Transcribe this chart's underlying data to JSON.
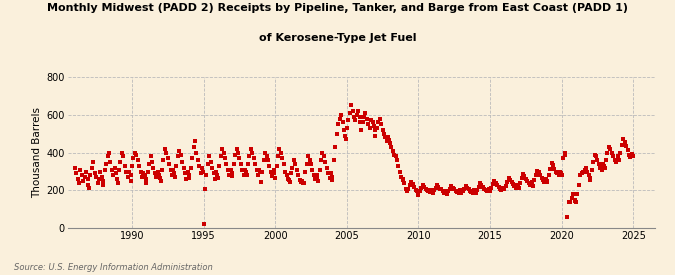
{
  "title_line1": "Monthly Midwest (PADD 2) Receipts by Pipeline, Tanker, and Barge from East Coast (PADD 1)",
  "title_line2": "of Kerosene-Type Jet Fuel",
  "ylabel": "Thousand Barrels",
  "source": "Source: U.S. Energy Information Administration",
  "background_color": "#faf0dc",
  "plot_bg_color": "#faf0dc",
  "marker_color": "#cc0000",
  "marker_size": 5,
  "ylim": [
    0,
    800
  ],
  "yticks": [
    0,
    200,
    400,
    600,
    800
  ],
  "grid_color": "#bbbbbb",
  "grid_style": "--",
  "xmin": 1985.5,
  "xmax": 2026.5,
  "xticks": [
    1990,
    1995,
    2000,
    2005,
    2010,
    2015,
    2020,
    2025
  ],
  "data": [
    [
      1986.0,
      320
    ],
    [
      1986.1,
      290
    ],
    [
      1986.2,
      260
    ],
    [
      1986.3,
      240
    ],
    [
      1986.4,
      310
    ],
    [
      1986.5,
      280
    ],
    [
      1986.6,
      250
    ],
    [
      1986.7,
      270
    ],
    [
      1986.8,
      300
    ],
    [
      1986.9,
      260
    ],
    [
      1986.95,
      230
    ],
    [
      1987.0,
      215
    ],
    [
      1987.1,
      280
    ],
    [
      1987.2,
      320
    ],
    [
      1987.3,
      350
    ],
    [
      1987.4,
      290
    ],
    [
      1987.5,
      270
    ],
    [
      1987.6,
      240
    ],
    [
      1987.7,
      260
    ],
    [
      1987.8,
      300
    ],
    [
      1987.9,
      270
    ],
    [
      1987.95,
      250
    ],
    [
      1988.0,
      230
    ],
    [
      1988.1,
      310
    ],
    [
      1988.2,
      340
    ],
    [
      1988.3,
      380
    ],
    [
      1988.4,
      400
    ],
    [
      1988.5,
      350
    ],
    [
      1988.6,
      310
    ],
    [
      1988.7,
      280
    ],
    [
      1988.8,
      320
    ],
    [
      1988.9,
      290
    ],
    [
      1988.95,
      260
    ],
    [
      1989.0,
      240
    ],
    [
      1989.1,
      310
    ],
    [
      1989.2,
      350
    ],
    [
      1989.3,
      400
    ],
    [
      1989.4,
      380
    ],
    [
      1989.5,
      330
    ],
    [
      1989.6,
      300
    ],
    [
      1989.7,
      270
    ],
    [
      1989.8,
      300
    ],
    [
      1989.9,
      280
    ],
    [
      1989.95,
      250
    ],
    [
      1990.0,
      330
    ],
    [
      1990.1,
      370
    ],
    [
      1990.2,
      400
    ],
    [
      1990.3,
      390
    ],
    [
      1990.4,
      360
    ],
    [
      1990.5,
      330
    ],
    [
      1990.6,
      300
    ],
    [
      1990.7,
      270
    ],
    [
      1990.8,
      290
    ],
    [
      1990.9,
      280
    ],
    [
      1990.95,
      260
    ],
    [
      1991.0,
      240
    ],
    [
      1991.1,
      300
    ],
    [
      1991.2,
      340
    ],
    [
      1991.3,
      380
    ],
    [
      1991.4,
      350
    ],
    [
      1991.5,
      320
    ],
    [
      1991.6,
      290
    ],
    [
      1991.7,
      270
    ],
    [
      1991.8,
      300
    ],
    [
      1991.9,
      280
    ],
    [
      1991.95,
      265
    ],
    [
      1992.0,
      250
    ],
    [
      1992.1,
      310
    ],
    [
      1992.2,
      360
    ],
    [
      1992.3,
      420
    ],
    [
      1992.4,
      400
    ],
    [
      1992.5,
      370
    ],
    [
      1992.6,
      340
    ],
    [
      1992.7,
      310
    ],
    [
      1992.8,
      280
    ],
    [
      1992.9,
      310
    ],
    [
      1992.95,
      290
    ],
    [
      1993.0,
      270
    ],
    [
      1993.1,
      330
    ],
    [
      1993.2,
      380
    ],
    [
      1993.3,
      410
    ],
    [
      1993.4,
      390
    ],
    [
      1993.5,
      350
    ],
    [
      1993.6,
      320
    ],
    [
      1993.7,
      290
    ],
    [
      1993.8,
      260
    ],
    [
      1993.9,
      300
    ],
    [
      1993.95,
      280
    ],
    [
      1994.0,
      265
    ],
    [
      1994.1,
      320
    ],
    [
      1994.2,
      370
    ],
    [
      1994.3,
      430
    ],
    [
      1994.4,
      460
    ],
    [
      1994.5,
      400
    ],
    [
      1994.6,
      360
    ],
    [
      1994.7,
      330
    ],
    [
      1994.8,
      290
    ],
    [
      1994.9,
      320
    ],
    [
      1994.95,
      295
    ],
    [
      1995.0,
      20
    ],
    [
      1995.1,
      210
    ],
    [
      1995.2,
      280
    ],
    [
      1995.3,
      340
    ],
    [
      1995.4,
      380
    ],
    [
      1995.5,
      350
    ],
    [
      1995.6,
      320
    ],
    [
      1995.7,
      290
    ],
    [
      1995.8,
      260
    ],
    [
      1995.9,
      300
    ],
    [
      1995.95,
      280
    ],
    [
      1996.0,
      265
    ],
    [
      1996.1,
      330
    ],
    [
      1996.2,
      380
    ],
    [
      1996.3,
      420
    ],
    [
      1996.4,
      400
    ],
    [
      1996.5,
      370
    ],
    [
      1996.6,
      340
    ],
    [
      1996.7,
      310
    ],
    [
      1996.8,
      280
    ],
    [
      1996.9,
      310
    ],
    [
      1996.95,
      290
    ],
    [
      1997.0,
      275
    ],
    [
      1997.1,
      340
    ],
    [
      1997.2,
      390
    ],
    [
      1997.3,
      420
    ],
    [
      1997.4,
      400
    ],
    [
      1997.5,
      370
    ],
    [
      1997.6,
      340
    ],
    [
      1997.7,
      310
    ],
    [
      1997.8,
      280
    ],
    [
      1997.9,
      310
    ],
    [
      1997.95,
      295
    ],
    [
      1998.0,
      280
    ],
    [
      1998.1,
      340
    ],
    [
      1998.2,
      380
    ],
    [
      1998.3,
      420
    ],
    [
      1998.4,
      400
    ],
    [
      1998.5,
      370
    ],
    [
      1998.6,
      340
    ],
    [
      1998.7,
      310
    ],
    [
      1998.8,
      280
    ],
    [
      1998.9,
      310
    ],
    [
      1998.95,
      295
    ],
    [
      1999.0,
      245
    ],
    [
      1999.1,
      300
    ],
    [
      1999.2,
      360
    ],
    [
      1999.3,
      400
    ],
    [
      1999.4,
      380
    ],
    [
      1999.5,
      360
    ],
    [
      1999.6,
      330
    ],
    [
      1999.7,
      300
    ],
    [
      1999.8,
      275
    ],
    [
      1999.9,
      310
    ],
    [
      1999.95,
      290
    ],
    [
      2000.0,
      265
    ],
    [
      2000.1,
      330
    ],
    [
      2000.2,
      380
    ],
    [
      2000.3,
      420
    ],
    [
      2000.4,
      400
    ],
    [
      2000.5,
      370
    ],
    [
      2000.6,
      340
    ],
    [
      2000.7,
      300
    ],
    [
      2000.8,
      280
    ],
    [
      2000.9,
      260
    ],
    [
      2000.95,
      255
    ],
    [
      2001.0,
      245
    ],
    [
      2001.1,
      290
    ],
    [
      2001.2,
      320
    ],
    [
      2001.3,
      360
    ],
    [
      2001.4,
      340
    ],
    [
      2001.5,
      310
    ],
    [
      2001.6,
      280
    ],
    [
      2001.7,
      255
    ],
    [
      2001.8,
      245
    ],
    [
      2001.9,
      250
    ],
    [
      2001.95,
      240
    ],
    [
      2002.0,
      240
    ],
    [
      2002.1,
      300
    ],
    [
      2002.2,
      340
    ],
    [
      2002.3,
      380
    ],
    [
      2002.4,
      360
    ],
    [
      2002.5,
      340
    ],
    [
      2002.6,
      310
    ],
    [
      2002.7,
      280
    ],
    [
      2002.8,
      260
    ],
    [
      2002.9,
      280
    ],
    [
      2002.95,
      265
    ],
    [
      2003.0,
      250
    ],
    [
      2003.1,
      310
    ],
    [
      2003.2,
      360
    ],
    [
      2003.3,
      400
    ],
    [
      2003.4,
      380
    ],
    [
      2003.5,
      350
    ],
    [
      2003.6,
      320
    ],
    [
      2003.7,
      290
    ],
    [
      2003.8,
      265
    ],
    [
      2003.9,
      290
    ],
    [
      2003.95,
      270
    ],
    [
      2004.0,
      255
    ],
    [
      2004.1,
      360
    ],
    [
      2004.2,
      430
    ],
    [
      2004.3,
      500
    ],
    [
      2004.4,
      550
    ],
    [
      2004.5,
      580
    ],
    [
      2004.6,
      600
    ],
    [
      2004.7,
      560
    ],
    [
      2004.8,
      520
    ],
    [
      2004.9,
      490
    ],
    [
      2004.95,
      470
    ],
    [
      2005.0,
      530
    ],
    [
      2005.1,
      570
    ],
    [
      2005.2,
      610
    ],
    [
      2005.3,
      650
    ],
    [
      2005.4,
      620
    ],
    [
      2005.5,
      590
    ],
    [
      2005.6,
      570
    ],
    [
      2005.7,
      600
    ],
    [
      2005.8,
      620
    ],
    [
      2005.9,
      590
    ],
    [
      2005.95,
      560
    ],
    [
      2006.0,
      520
    ],
    [
      2006.1,
      560
    ],
    [
      2006.2,
      590
    ],
    [
      2006.3,
      610
    ],
    [
      2006.4,
      580
    ],
    [
      2006.5,
      550
    ],
    [
      2006.6,
      530
    ],
    [
      2006.7,
      570
    ],
    [
      2006.8,
      560
    ],
    [
      2006.9,
      540
    ],
    [
      2006.95,
      520
    ],
    [
      2007.0,
      490
    ],
    [
      2007.1,
      530
    ],
    [
      2007.2,
      560
    ],
    [
      2007.3,
      580
    ],
    [
      2007.4,
      550
    ],
    [
      2007.5,
      520
    ],
    [
      2007.6,
      500
    ],
    [
      2007.7,
      480
    ],
    [
      2007.8,
      460
    ],
    [
      2007.9,
      480
    ],
    [
      2007.95,
      465
    ],
    [
      2008.0,
      450
    ],
    [
      2008.1,
      430
    ],
    [
      2008.2,
      410
    ],
    [
      2008.3,
      390
    ],
    [
      2008.4,
      380
    ],
    [
      2008.5,
      360
    ],
    [
      2008.6,
      330
    ],
    [
      2008.7,
      300
    ],
    [
      2008.8,
      270
    ],
    [
      2008.9,
      260
    ],
    [
      2008.95,
      255
    ],
    [
      2009.0,
      240
    ],
    [
      2009.1,
      210
    ],
    [
      2009.2,
      195
    ],
    [
      2009.3,
      210
    ],
    [
      2009.4,
      230
    ],
    [
      2009.5,
      245
    ],
    [
      2009.6,
      235
    ],
    [
      2009.7,
      220
    ],
    [
      2009.8,
      200
    ],
    [
      2009.9,
      195
    ],
    [
      2009.95,
      185
    ],
    [
      2010.0,
      175
    ],
    [
      2010.1,
      195
    ],
    [
      2010.2,
      215
    ],
    [
      2010.3,
      230
    ],
    [
      2010.4,
      220
    ],
    [
      2010.5,
      210
    ],
    [
      2010.6,
      200
    ],
    [
      2010.7,
      195
    ],
    [
      2010.8,
      190
    ],
    [
      2010.9,
      200
    ],
    [
      2010.95,
      195
    ],
    [
      2011.0,
      185
    ],
    [
      2011.1,
      200
    ],
    [
      2011.2,
      215
    ],
    [
      2011.3,
      230
    ],
    [
      2011.4,
      220
    ],
    [
      2011.5,
      210
    ],
    [
      2011.6,
      205
    ],
    [
      2011.7,
      195
    ],
    [
      2011.8,
      185
    ],
    [
      2011.9,
      195
    ],
    [
      2011.95,
      190
    ],
    [
      2012.0,
      180
    ],
    [
      2012.1,
      195
    ],
    [
      2012.2,
      210
    ],
    [
      2012.3,
      225
    ],
    [
      2012.4,
      215
    ],
    [
      2012.5,
      205
    ],
    [
      2012.6,
      195
    ],
    [
      2012.7,
      190
    ],
    [
      2012.8,
      185
    ],
    [
      2012.9,
      200
    ],
    [
      2012.95,
      195
    ],
    [
      2013.0,
      185
    ],
    [
      2013.1,
      195
    ],
    [
      2013.2,
      210
    ],
    [
      2013.3,
      225
    ],
    [
      2013.4,
      215
    ],
    [
      2013.5,
      205
    ],
    [
      2013.6,
      195
    ],
    [
      2013.7,
      190
    ],
    [
      2013.8,
      185
    ],
    [
      2013.9,
      200
    ],
    [
      2013.95,
      195
    ],
    [
      2014.0,
      185
    ],
    [
      2014.1,
      200
    ],
    [
      2014.2,
      220
    ],
    [
      2014.3,
      240
    ],
    [
      2014.4,
      230
    ],
    [
      2014.5,
      220
    ],
    [
      2014.6,
      210
    ],
    [
      2014.7,
      200
    ],
    [
      2014.8,
      195
    ],
    [
      2014.9,
      210
    ],
    [
      2014.95,
      205
    ],
    [
      2015.0,
      195
    ],
    [
      2015.1,
      215
    ],
    [
      2015.2,
      235
    ],
    [
      2015.3,
      250
    ],
    [
      2015.4,
      240
    ],
    [
      2015.5,
      230
    ],
    [
      2015.6,
      220
    ],
    [
      2015.7,
      210
    ],
    [
      2015.8,
      200
    ],
    [
      2015.9,
      215
    ],
    [
      2015.95,
      210
    ],
    [
      2016.0,
      205
    ],
    [
      2016.1,
      225
    ],
    [
      2016.2,
      245
    ],
    [
      2016.3,
      265
    ],
    [
      2016.4,
      255
    ],
    [
      2016.5,
      245
    ],
    [
      2016.6,
      235
    ],
    [
      2016.7,
      225
    ],
    [
      2016.8,
      215
    ],
    [
      2016.9,
      230
    ],
    [
      2016.95,
      220
    ],
    [
      2017.0,
      215
    ],
    [
      2017.1,
      240
    ],
    [
      2017.2,
      265
    ],
    [
      2017.3,
      285
    ],
    [
      2017.4,
      275
    ],
    [
      2017.5,
      260
    ],
    [
      2017.6,
      250
    ],
    [
      2017.7,
      240
    ],
    [
      2017.8,
      230
    ],
    [
      2017.9,
      245
    ],
    [
      2017.95,
      235
    ],
    [
      2018.0,
      225
    ],
    [
      2018.1,
      255
    ],
    [
      2018.2,
      280
    ],
    [
      2018.3,
      305
    ],
    [
      2018.4,
      295
    ],
    [
      2018.5,
      280
    ],
    [
      2018.6,
      265
    ],
    [
      2018.7,
      255
    ],
    [
      2018.8,
      245
    ],
    [
      2018.9,
      260
    ],
    [
      2018.95,
      250
    ],
    [
      2019.0,
      245
    ],
    [
      2019.1,
      280
    ],
    [
      2019.2,
      315
    ],
    [
      2019.3,
      345
    ],
    [
      2019.4,
      335
    ],
    [
      2019.5,
      315
    ],
    [
      2019.6,
      300
    ],
    [
      2019.7,
      290
    ],
    [
      2019.8,
      280
    ],
    [
      2019.9,
      300
    ],
    [
      2019.95,
      290
    ],
    [
      2020.0,
      280
    ],
    [
      2020.1,
      370
    ],
    [
      2020.2,
      390
    ],
    [
      2020.25,
      400
    ],
    [
      2020.35,
      60
    ],
    [
      2020.5,
      140
    ],
    [
      2020.6,
      140
    ],
    [
      2020.7,
      160
    ],
    [
      2020.8,
      180
    ],
    [
      2020.9,
      150
    ],
    [
      2020.95,
      145
    ],
    [
      2021.0,
      140
    ],
    [
      2021.1,
      180
    ],
    [
      2021.2,
      230
    ],
    [
      2021.3,
      280
    ],
    [
      2021.4,
      290
    ],
    [
      2021.5,
      300
    ],
    [
      2021.6,
      310
    ],
    [
      2021.7,
      320
    ],
    [
      2021.8,
      300
    ],
    [
      2021.9,
      280
    ],
    [
      2021.95,
      265
    ],
    [
      2022.0,
      255
    ],
    [
      2022.1,
      310
    ],
    [
      2022.2,
      350
    ],
    [
      2022.3,
      390
    ],
    [
      2022.4,
      380
    ],
    [
      2022.5,
      360
    ],
    [
      2022.6,
      340
    ],
    [
      2022.7,
      320
    ],
    [
      2022.8,
      310
    ],
    [
      2022.9,
      340
    ],
    [
      2022.95,
      330
    ],
    [
      2023.0,
      320
    ],
    [
      2023.1,
      360
    ],
    [
      2023.2,
      400
    ],
    [
      2023.3,
      430
    ],
    [
      2023.4,
      420
    ],
    [
      2023.5,
      400
    ],
    [
      2023.6,
      380
    ],
    [
      2023.7,
      360
    ],
    [
      2023.8,
      350
    ],
    [
      2023.9,
      380
    ],
    [
      2023.95,
      370
    ],
    [
      2024.0,
      360
    ],
    [
      2024.1,
      400
    ],
    [
      2024.2,
      440
    ],
    [
      2024.3,
      470
    ],
    [
      2024.4,
      455
    ],
    [
      2024.5,
      435
    ],
    [
      2024.6,
      415
    ],
    [
      2024.7,
      390
    ],
    [
      2024.8,
      375
    ],
    [
      2024.9,
      395
    ],
    [
      2024.95,
      380
    ]
  ]
}
